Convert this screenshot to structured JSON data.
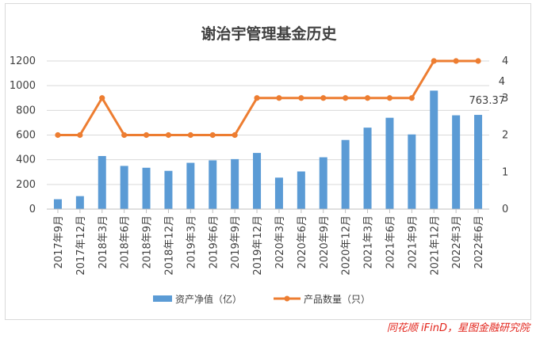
{
  "chart_data": {
    "type": "bar",
    "title": "谢治宇管理基金历史",
    "categories": [
      "2017年9月",
      "2017年12月",
      "2018年3月",
      "2018年6月",
      "2018年9月",
      "2018年12月",
      "2019年3月",
      "2019年6月",
      "2019年9月",
      "2019年12月",
      "2020年3月",
      "2020年6月",
      "2020年9月",
      "2020年12月",
      "2021年3月",
      "2021年6月",
      "2021年9月",
      "2021年12月",
      "2022年3月",
      "2022年6月"
    ],
    "series": [
      {
        "name": "资产净值（亿）",
        "kind": "bar",
        "axis": "left",
        "color": "#5b9bd5",
        "values": [
          80,
          105,
          430,
          350,
          335,
          310,
          375,
          395,
          405,
          455,
          255,
          305,
          420,
          560,
          660,
          740,
          605,
          960,
          760,
          763.37
        ]
      },
      {
        "name": "产品数量（只）",
        "kind": "line",
        "axis": "right",
        "color": "#ed7d31",
        "values": [
          2,
          2,
          3,
          2,
          2,
          2,
          2,
          2,
          2,
          3,
          3,
          3,
          3,
          3,
          3,
          3,
          3,
          4,
          4,
          4
        ]
      }
    ],
    "ylim_left": [
      0,
      1200
    ],
    "yticks_left": [
      "0",
      "200",
      "400",
      "600",
      "800",
      "1000",
      "1200"
    ],
    "ylim_right": [
      0,
      4
    ],
    "yticks_right": [
      "0",
      "1",
      "2",
      "3",
      "4"
    ],
    "annotations": [
      "4",
      "763.37"
    ],
    "legend_position": "bottom"
  },
  "source": "同花顺 iFinD，星图金融研究院"
}
